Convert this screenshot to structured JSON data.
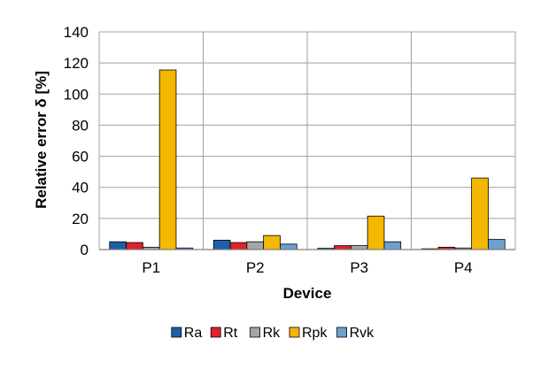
{
  "chart_data": {
    "type": "bar",
    "xlabel": "Device",
    "ylabel": "Relative error δ [%]",
    "categories": [
      "P1",
      "P2",
      "P3",
      "P4"
    ],
    "ylim": [
      0,
      140
    ],
    "yticks": [
      0,
      20,
      40,
      60,
      80,
      100,
      120,
      140
    ],
    "grid": true,
    "legend_position": "bottom",
    "series": [
      {
        "name": "Ra",
        "color": "#1f5fa8",
        "values": [
          5.0,
          6.0,
          0.8,
          0.5
        ]
      },
      {
        "name": "Rt",
        "color": "#e0202a",
        "values": [
          4.5,
          4.5,
          2.5,
          1.5
        ]
      },
      {
        "name": "Rk",
        "color": "#a6a6a6",
        "values": [
          1.5,
          5.0,
          2.5,
          1.0
        ]
      },
      {
        "name": "Rpk",
        "color": "#f5b800",
        "values": [
          115.5,
          9.0,
          21.5,
          46.0
        ]
      },
      {
        "name": "Rvk",
        "color": "#6c9fd0",
        "values": [
          1.0,
          3.5,
          5.0,
          6.5
        ]
      }
    ]
  }
}
